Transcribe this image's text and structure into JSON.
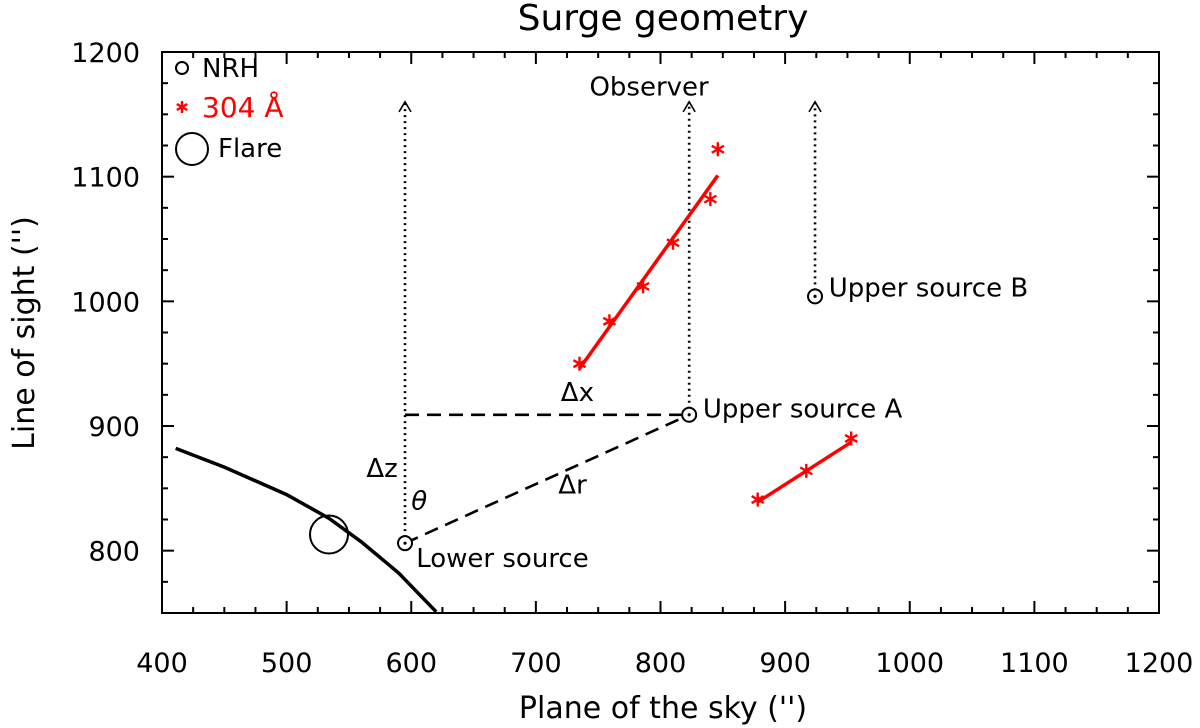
{
  "chart_data": {
    "type": "scatter",
    "title": "Surge geometry",
    "xlabel": "Plane of the sky ('')",
    "ylabel": "Line of sight ('')",
    "xlim": [
      400,
      1200
    ],
    "ylim": [
      750,
      1200
    ],
    "x_ticks": [
      400,
      500,
      600,
      700,
      800,
      900,
      1000,
      1100,
      1200
    ],
    "y_ticks": [
      800,
      900,
      1000,
      1100,
      1200
    ],
    "grid": false,
    "legend_position": "top-left",
    "legend": [
      {
        "symbol": "small-circle",
        "label": "NRH",
        "color": "#000000"
      },
      {
        "symbol": "asterisk",
        "label": "304 Å",
        "color": "#ff0000"
      },
      {
        "symbol": "large-circle",
        "label": "Flare",
        "color": "#000000"
      }
    ],
    "series": [
      {
        "symbol": "small-circle",
        "color": "#000000",
        "points": [
          {
            "x": 595,
            "y": 806
          },
          {
            "x": 823,
            "y": 909
          },
          {
            "x": 924,
            "y": 1004
          }
        ]
      },
      {
        "symbol": "asterisk",
        "color": "#ff0000",
        "points": [
          {
            "x": 735,
            "y": 950
          },
          {
            "x": 759,
            "y": 984
          },
          {
            "x": 786,
            "y": 1012
          },
          {
            "x": 810,
            "y": 1047
          },
          {
            "x": 840,
            "y": 1082
          },
          {
            "x": 846,
            "y": 1122
          },
          {
            "x": 878,
            "y": 841
          },
          {
            "x": 917,
            "y": 864
          },
          {
            "x": 953,
            "y": 890
          }
        ]
      },
      {
        "symbol": "large-circle",
        "color": "#000000",
        "points": [
          {
            "x": 534,
            "y": 813
          }
        ]
      }
    ],
    "fit_lines": [
      {
        "color": "#ff0000",
        "from": {
          "x": 735,
          "y": 946
        },
        "to": {
          "x": 846,
          "y": 1101
        }
      },
      {
        "color": "#ff0000",
        "from": {
          "x": 878,
          "y": 839
        },
        "to": {
          "x": 953,
          "y": 887
        }
      }
    ],
    "limb_curve": [
      {
        "x": 411,
        "y": 882
      },
      {
        "x": 450,
        "y": 867
      },
      {
        "x": 500,
        "y": 845
      },
      {
        "x": 534,
        "y": 826
      },
      {
        "x": 560,
        "y": 807
      },
      {
        "x": 590,
        "y": 782
      },
      {
        "x": 620,
        "y": 751
      }
    ],
    "sightlines": [
      {
        "x": 595,
        "from_y": 806,
        "to_y": 1160
      },
      {
        "x": 823,
        "from_y": 909,
        "to_y": 1160
      },
      {
        "x": 924,
        "from_y": 1004,
        "to_y": 1160
      }
    ],
    "dashed_lines": [
      {
        "from": {
          "x": 595,
          "y": 909
        },
        "to": {
          "x": 823,
          "y": 909
        }
      },
      {
        "from": {
          "x": 595,
          "y": 806
        },
        "to": {
          "x": 823,
          "y": 909
        }
      }
    ],
    "annotations": [
      {
        "text": "Observer",
        "x": 743,
        "y": 1165
      },
      {
        "text": "Upper source B",
        "x": 935,
        "y": 1004
      },
      {
        "text": "Upper source A",
        "x": 834,
        "y": 907
      },
      {
        "text": "Lower source",
        "x": 604,
        "y": 787
      },
      {
        "text": "Δx",
        "x": 720,
        "y": 920
      },
      {
        "text": "Δz",
        "x": 564,
        "y": 859
      },
      {
        "text": "Δr",
        "x": 718,
        "y": 846
      },
      {
        "text": "θ",
        "x": 600,
        "y": 833
      }
    ]
  }
}
